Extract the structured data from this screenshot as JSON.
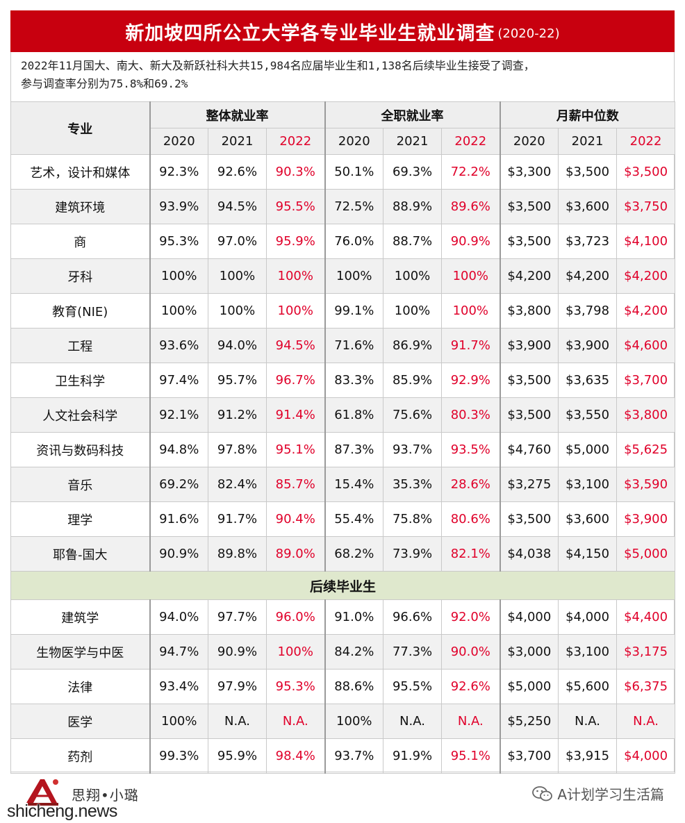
{
  "title": {
    "main": "新加坡四所公立大学各专业毕业生就业调查",
    "sub": "(2020-22)"
  },
  "intro": {
    "line1": "2022年11月国大、南大、新大及新跃社科大共15,984名应届毕业生和1,138名后续毕业生接受了调查，",
    "line2": "参与调查率分别为75.8%和69.2%"
  },
  "headers": {
    "major": "专业",
    "groups": [
      "整体就业率",
      "全职就业率",
      "月薪中位数"
    ],
    "years": [
      "2020",
      "2021",
      "2022"
    ]
  },
  "rows": [
    {
      "major": "艺术，设计和媒体",
      "v": [
        "92.3%",
        "92.6%",
        "90.3%",
        "50.1%",
        "69.3%",
        "72.2%",
        "$3,300",
        "$3,500",
        "$3,500"
      ]
    },
    {
      "major": "建筑环境",
      "v": [
        "93.9%",
        "94.5%",
        "95.5%",
        "72.5%",
        "88.9%",
        "89.6%",
        "$3,500",
        "$3,600",
        "$3,750"
      ]
    },
    {
      "major": "商",
      "v": [
        "95.3%",
        "97.0%",
        "95.9%",
        "76.0%",
        "88.7%",
        "90.9%",
        "$3,500",
        "$3,723",
        "$4,100"
      ]
    },
    {
      "major": "牙科",
      "v": [
        "100%",
        "100%",
        "100%",
        "100%",
        "100%",
        "100%",
        "$4,200",
        "$4,200",
        "$4,200"
      ]
    },
    {
      "major": "教育(NIE)",
      "v": [
        "100%",
        "100%",
        "100%",
        "99.1%",
        "100%",
        "100%",
        "$3,800",
        "$3,798",
        "$4,200"
      ]
    },
    {
      "major": "工程",
      "v": [
        "93.6%",
        "94.0%",
        "94.5%",
        "71.6%",
        "86.9%",
        "91.7%",
        "$3,900",
        "$3,900",
        "$4,600"
      ]
    },
    {
      "major": "卫生科学",
      "v": [
        "97.4%",
        "95.7%",
        "96.7%",
        "83.3%",
        "85.9%",
        "92.9%",
        "$3,500",
        "$3,635",
        "$3,700"
      ]
    },
    {
      "major": "人文社会科学",
      "v": [
        "92.1%",
        "91.2%",
        "91.4%",
        "61.8%",
        "75.6%",
        "80.3%",
        "$3,500",
        "$3,550",
        "$3,800"
      ]
    },
    {
      "major": "资讯与数码科技",
      "v": [
        "94.8%",
        "97.8%",
        "95.1%",
        "87.3%",
        "93.7%",
        "93.5%",
        "$4,760",
        "$5,000",
        "$5,625"
      ]
    },
    {
      "major": "音乐",
      "v": [
        "69.2%",
        "82.4%",
        "85.7%",
        "15.4%",
        "35.3%",
        "28.6%",
        "$3,275",
        "$3,100",
        "$3,590"
      ]
    },
    {
      "major": "理学",
      "v": [
        "91.6%",
        "91.7%",
        "90.4%",
        "55.4%",
        "75.8%",
        "80.6%",
        "$3,500",
        "$3,600",
        "$3,900"
      ]
    },
    {
      "major": "耶鲁-国大",
      "v": [
        "90.9%",
        "89.8%",
        "89.0%",
        "68.2%",
        "73.9%",
        "82.1%",
        "$4,038",
        "$4,150",
        "$5,000"
      ]
    }
  ],
  "section_label": "后续毕业生",
  "post_rows": [
    {
      "major": "建筑学",
      "v": [
        "94.0%",
        "97.7%",
        "96.0%",
        "91.0%",
        "96.6%",
        "92.0%",
        "$4,000",
        "$4,000",
        "$4,400"
      ]
    },
    {
      "major": "生物医学与中医",
      "v": [
        "94.7%",
        "90.9%",
        "100%",
        "84.2%",
        "77.3%",
        "90.0%",
        "$3,000",
        "$3,100",
        "$3,175"
      ]
    },
    {
      "major": "法律",
      "v": [
        "93.4%",
        "97.9%",
        "95.3%",
        "88.6%",
        "95.5%",
        "92.6%",
        "$5,000",
        "$5,600",
        "$6,375"
      ]
    },
    {
      "major": "医学",
      "v": [
        "100%",
        "N.A.",
        "N.A.",
        "100%",
        "N.A.",
        "N.A.",
        "$5,250",
        "N.A.",
        "N.A."
      ]
    },
    {
      "major": "药剂",
      "v": [
        "99.3%",
        "95.9%",
        "98.4%",
        "93.7%",
        "91.9%",
        "95.1%",
        "$3,700",
        "$3,915",
        "$4,000"
      ]
    }
  ],
  "footer": {
    "name": "思翔•小璐",
    "watermark": "shicheng.news",
    "wechat_account": "A计划学习生活篇",
    "wechat_icon": "wechat-icon"
  },
  "colors": {
    "title_bg": "#c8000f",
    "highlight": "#e0002a",
    "section_bg": "#dfe8cd"
  }
}
